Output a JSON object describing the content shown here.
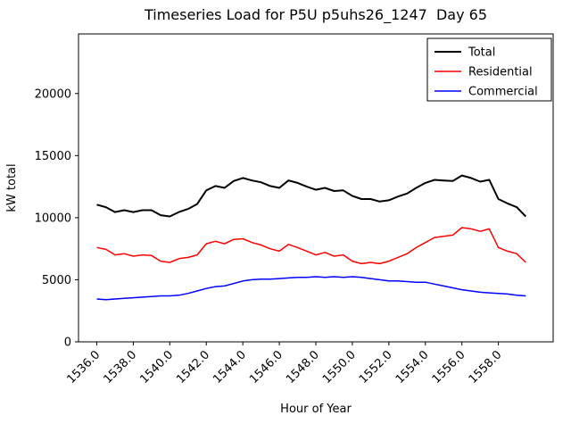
{
  "chart_data": {
    "type": "line",
    "title": "Timeseries Load for P5U p5uhs26_1247  Day 65",
    "xlabel": "Hour of Year",
    "ylabel": "kW total",
    "xlim": [
      1535.0,
      1561.0
    ],
    "ylim": [
      0,
      24800
    ],
    "grid": false,
    "legend_position": "upper right",
    "xticks": [
      1536,
      1538,
      1540,
      1542,
      1544,
      1546,
      1548,
      1550,
      1552,
      1554,
      1556,
      1558
    ],
    "xtick_labels": [
      "1536.0",
      "1538.0",
      "1540.0",
      "1542.0",
      "1544.0",
      "1546.0",
      "1548.0",
      "1550.0",
      "1552.0",
      "1554.0",
      "1556.0",
      "1558.0"
    ],
    "yticks": [
      0,
      5000,
      10000,
      15000,
      20000
    ],
    "ytick_labels": [
      "0",
      "5000",
      "10000",
      "15000",
      "20000"
    ],
    "x": [
      1536,
      1536.5,
      1537,
      1537.5,
      1538,
      1538.5,
      1539,
      1539.5,
      1540,
      1540.5,
      1541,
      1541.5,
      1542,
      1542.5,
      1543,
      1543.5,
      1544,
      1544.5,
      1545,
      1545.5,
      1546,
      1546.5,
      1547,
      1547.5,
      1548,
      1548.5,
      1549,
      1549.5,
      1550,
      1550.5,
      1551,
      1551.5,
      1552,
      1552.5,
      1553,
      1553.5,
      1554,
      1554.5,
      1555,
      1555.5,
      1556,
      1556.5,
      1557,
      1557.5,
      1558,
      1558.5,
      1559,
      1559.5
    ],
    "series": [
      {
        "name": "Total",
        "color": "#000000",
        "linewidth": 2.0,
        "values": [
          11050,
          10850,
          10450,
          10600,
          10450,
          10600,
          10600,
          10200,
          10100,
          10450,
          10700,
          11100,
          12200,
          12550,
          12400,
          12950,
          13200,
          13000,
          12850,
          12550,
          12400,
          13000,
          12800,
          12500,
          12250,
          12400,
          12150,
          12200,
          11750,
          11500,
          11500,
          11300,
          11400,
          11700,
          11950,
          12400,
          12800,
          13050,
          13000,
          12950,
          13400,
          13200,
          12900,
          13050,
          11500,
          11150,
          10850,
          10100
        ]
      },
      {
        "name": "Residential",
        "color": "#ff0000",
        "linewidth": 1.5,
        "values": [
          7600,
          7450,
          7000,
          7100,
          6900,
          7000,
          6950,
          6500,
          6400,
          6700,
          6800,
          7000,
          7900,
          8100,
          7900,
          8250,
          8300,
          8000,
          7800,
          7500,
          7300,
          7850,
          7600,
          7300,
          7000,
          7200,
          6900,
          7000,
          6500,
          6300,
          6400,
          6300,
          6500,
          6800,
          7100,
          7600,
          8000,
          8400,
          8500,
          8600,
          9200,
          9100,
          8900,
          9100,
          7600,
          7300,
          7100,
          6400
        ]
      },
      {
        "name": "Commercial",
        "color": "#0000ff",
        "linewidth": 1.5,
        "values": [
          3450,
          3400,
          3450,
          3500,
          3550,
          3600,
          3650,
          3700,
          3700,
          3750,
          3900,
          4100,
          4300,
          4450,
          4500,
          4700,
          4900,
          5000,
          5050,
          5050,
          5100,
          5150,
          5200,
          5200,
          5250,
          5200,
          5250,
          5200,
          5250,
          5200,
          5100,
          5000,
          4900,
          4900,
          4850,
          4800,
          4800,
          4650,
          4500,
          4350,
          4200,
          4100,
          4000,
          3950,
          3900,
          3850,
          3750,
          3700
        ]
      }
    ]
  }
}
